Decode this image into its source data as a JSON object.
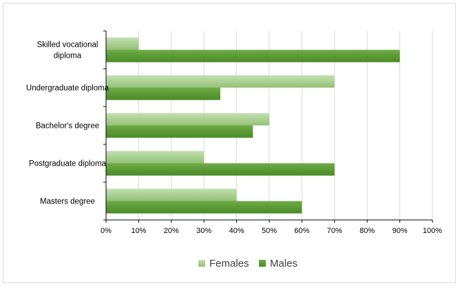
{
  "chart_data": {
    "type": "bar",
    "orientation": "horizontal",
    "title": "",
    "xlabel": "",
    "ylabel": "",
    "categories": [
      [
        "Skilled vocational",
        "diploma"
      ],
      [
        "Undergraduate diploma"
      ],
      [
        "Bachelor's degree"
      ],
      [
        "Postgraduate diploma"
      ],
      [
        "Masters degree"
      ]
    ],
    "series": [
      {
        "name": "Females",
        "values": [
          10,
          70,
          50,
          30,
          40
        ],
        "color": "#a6cd8e"
      },
      {
        "name": "Males",
        "values": [
          90,
          35,
          45,
          70,
          60
        ],
        "color": "#5b9a35"
      }
    ],
    "xlim": [
      0,
      100
    ],
    "ticks": [
      "0%",
      "10%",
      "20%",
      "30%",
      "40%",
      "50%",
      "60%",
      "70%",
      "80%",
      "90%",
      "100%"
    ],
    "tick_values": [
      0,
      10,
      20,
      30,
      40,
      50,
      60,
      70,
      80,
      90,
      100
    ],
    "grid": true,
    "legend_position": "bottom"
  }
}
